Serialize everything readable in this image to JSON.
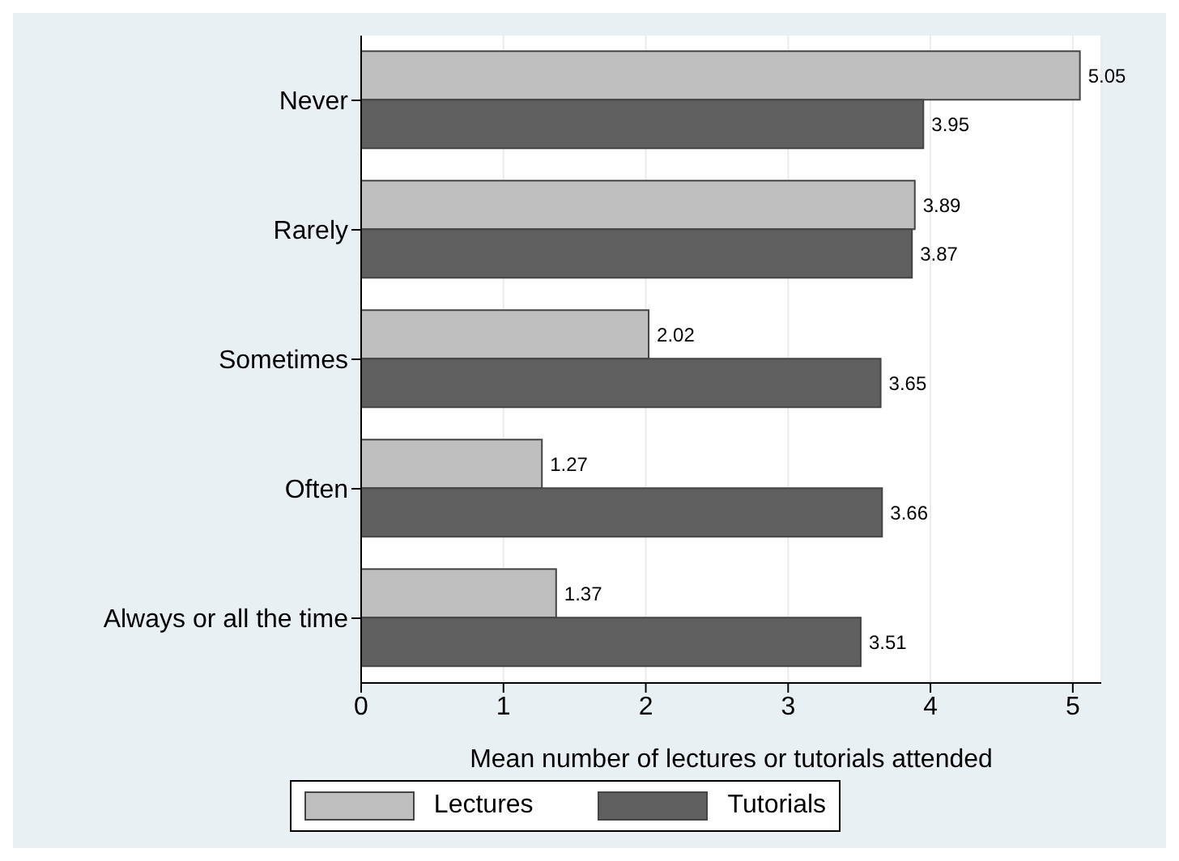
{
  "chart_data": {
    "type": "bar",
    "orientation": "horizontal",
    "xlabel": "Mean number of lectures or tutorials attended",
    "categories": [
      "Never",
      "Rarely",
      "Sometimes",
      "Often",
      "Always or all the time"
    ],
    "series": [
      {
        "name": "Lectures",
        "color": "#bebebe",
        "values": [
          5.05,
          3.89,
          2.02,
          1.27,
          1.37
        ]
      },
      {
        "name": "Tutorials",
        "color": "#5f5f5f",
        "values": [
          3.95,
          3.87,
          3.65,
          3.66,
          3.51
        ]
      }
    ],
    "xlim": [
      0,
      5.2
    ],
    "xticks": [
      0,
      1,
      2,
      3,
      4,
      5
    ],
    "grid": "x",
    "legend": "bottom",
    "data_labels": true
  }
}
